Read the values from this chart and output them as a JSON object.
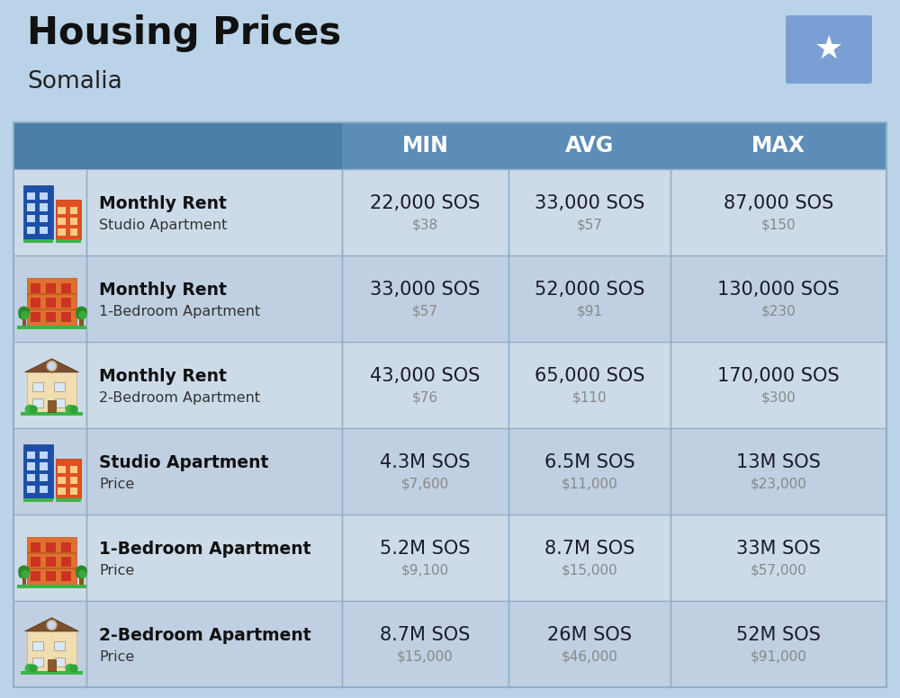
{
  "title": "Housing Prices",
  "subtitle": "Somalia",
  "background_color": "#bad3e8",
  "header_bg_color": "#5b8db8",
  "header_text_color": "#ffffff",
  "row_bg_even": "#cddbe9",
  "row_bg_odd": "#c0d0e2",
  "col_headers": [
    "MIN",
    "AVG",
    "MAX"
  ],
  "rows": [
    {
      "bold_label": "Monthly Rent",
      "sub_label": "Studio Apartment",
      "min_sos": "22,000 SOS",
      "min_usd": "$38",
      "avg_sos": "33,000 SOS",
      "avg_usd": "$57",
      "max_sos": "87,000 SOS",
      "max_usd": "$150",
      "icon_type": "blue_red"
    },
    {
      "bold_label": "Monthly Rent",
      "sub_label": "1-Bedroom Apartment",
      "min_sos": "33,000 SOS",
      "min_usd": "$57",
      "avg_sos": "52,000 SOS",
      "avg_usd": "$91",
      "max_sos": "130,000 SOS",
      "max_usd": "$230",
      "icon_type": "orange"
    },
    {
      "bold_label": "Monthly Rent",
      "sub_label": "2-Bedroom Apartment",
      "min_sos": "43,000 SOS",
      "min_usd": "$76",
      "avg_sos": "65,000 SOS",
      "avg_usd": "$110",
      "max_sos": "170,000 SOS",
      "max_usd": "$300",
      "icon_type": "beige"
    },
    {
      "bold_label": "Studio Apartment",
      "sub_label": "Price",
      "min_sos": "4.3M SOS",
      "min_usd": "$7,600",
      "avg_sos": "6.5M SOS",
      "avg_usd": "$11,000",
      "max_sos": "13M SOS",
      "max_usd": "$23,000",
      "icon_type": "blue_red"
    },
    {
      "bold_label": "1-Bedroom Apartment",
      "sub_label": "Price",
      "min_sos": "5.2M SOS",
      "min_usd": "$9,100",
      "avg_sos": "8.7M SOS",
      "avg_usd": "$15,000",
      "max_sos": "33M SOS",
      "max_usd": "$57,000",
      "icon_type": "orange"
    },
    {
      "bold_label": "2-Bedroom Apartment",
      "sub_label": "Price",
      "min_sos": "8.7M SOS",
      "min_usd": "$15,000",
      "avg_sos": "26M SOS",
      "avg_usd": "$46,000",
      "max_sos": "52M SOS",
      "max_usd": "$91,000",
      "icon_type": "beige"
    }
  ],
  "flag_bg_color": "#7b9fd4",
  "flag_star_color": "#ffffff",
  "divider_color": "#90afc8",
  "sos_text_color": "#1a1a2e",
  "usd_text_color": "#888888",
  "label_bold_color": "#111111",
  "label_sub_color": "#333333",
  "title_color": "#111111",
  "subtitle_color": "#222222"
}
